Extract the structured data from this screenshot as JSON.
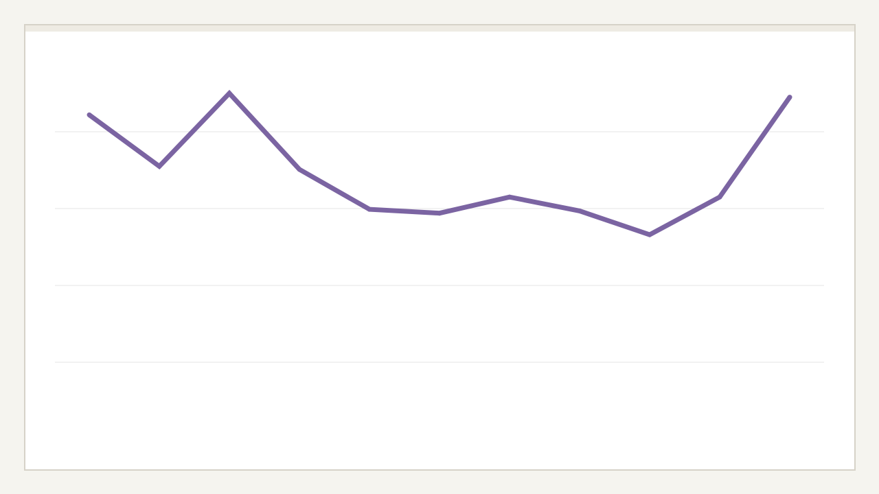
{
  "colors": {
    "page_background": "#f5f4ef",
    "panel_background": "#ffffff",
    "panel_border": "#d6d2c8",
    "gridline": "#e4e4e4",
    "series_line": "#7b64a2"
  },
  "chart_data": {
    "type": "line",
    "grid": true,
    "legend": "none",
    "ylim": [
      0,
      5
    ],
    "gridline_values": [
      1,
      2,
      3,
      4
    ],
    "x": [
      1,
      2,
      3,
      4,
      5,
      6,
      7,
      8,
      9,
      10,
      11
    ],
    "series": [
      {
        "values": [
          4.22,
          3.55,
          4.5,
          3.51,
          2.99,
          2.94,
          3.15,
          2.97,
          2.66,
          3.15,
          4.45
        ]
      }
    ]
  }
}
